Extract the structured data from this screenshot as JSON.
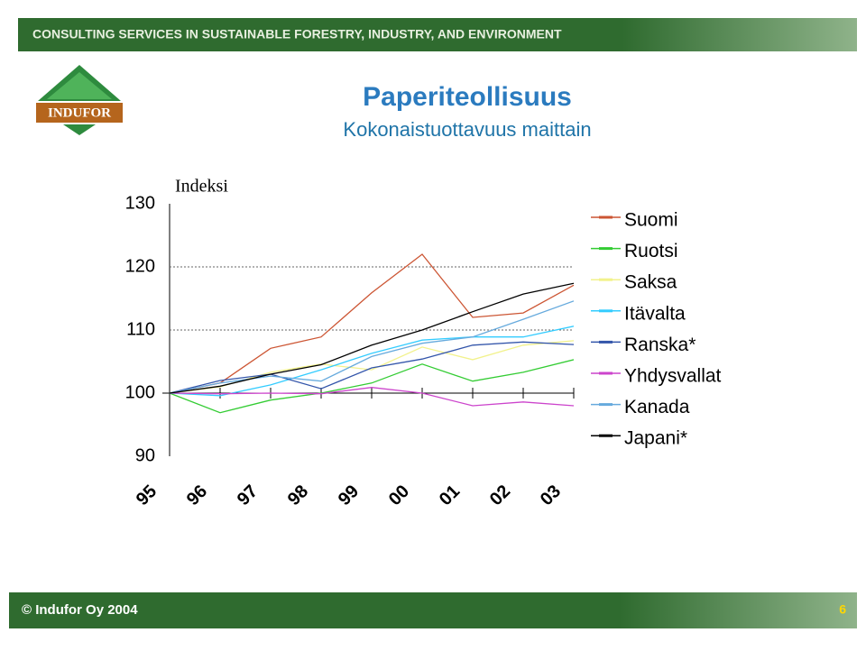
{
  "header": {
    "text": "CONSULTING SERVICES IN SUSTAINABLE FORESTRY, INDUSTRY, AND ENVIRONMENT"
  },
  "logo": {
    "text": "INDUFOR"
  },
  "footer": {
    "text": "© Indufor Oy 2004",
    "page": "6"
  },
  "chart_data": {
    "type": "line",
    "title": "Paperiteollisuus",
    "subtitle": "Kokonaistuottavuus maittain",
    "y_label": "Indeksi",
    "categories": [
      "95",
      "96",
      "97",
      "98",
      "99",
      "00",
      "01",
      "02",
      "03"
    ],
    "ylim": [
      90,
      130
    ],
    "yticks": [
      90,
      100,
      110,
      120,
      130
    ],
    "grid": true,
    "series": [
      {
        "name": "Suomi",
        "color": "#cc5533",
        "values": [
          100,
          101.6,
          107.1,
          108.9,
          115.9,
          122,
          112,
          112.7,
          117.1
        ]
      },
      {
        "name": "Ruotsi",
        "color": "#33cc33",
        "values": [
          100,
          96.9,
          98.9,
          100,
          101.6,
          104.6,
          101.9,
          103.3,
          105.3
        ]
      },
      {
        "name": "Saksa",
        "color": "#f2f28c",
        "values": [
          100,
          101,
          103.3,
          104.6,
          103.7,
          107.3,
          105.3,
          107.6,
          108.3
        ]
      },
      {
        "name": "Itävalta",
        "color": "#33ccff",
        "values": [
          100,
          99.6,
          101.3,
          103.7,
          106.3,
          108.4,
          108.9,
          108.9,
          110.6
        ]
      },
      {
        "name": "Ranska*",
        "color": "#3355aa",
        "values": [
          100,
          102,
          103,
          100.7,
          104,
          105.4,
          107.6,
          108.1,
          107.7
        ]
      },
      {
        "name": "Yhdysvallat",
        "color": "#cc44cc",
        "values": [
          100,
          99.9,
          100,
          99.9,
          100.9,
          100,
          98,
          98.6,
          98
        ]
      },
      {
        "name": "Kanada",
        "color": "#66aadd",
        "values": [
          100,
          101.6,
          102.7,
          101.9,
          105.8,
          107.9,
          108.9,
          111.7,
          114.6
        ]
      },
      {
        "name": "Japani*",
        "color": "#000000",
        "values": [
          100,
          101.1,
          103,
          104.5,
          107.6,
          110,
          112.9,
          115.7,
          117.4
        ]
      }
    ]
  }
}
